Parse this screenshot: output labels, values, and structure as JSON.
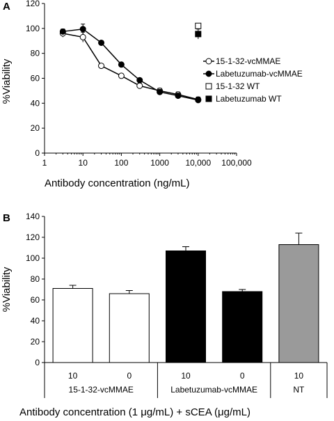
{
  "chart_data": [
    {
      "panel": "A",
      "type": "line",
      "xscale": "log",
      "xlabel": "Antibody concentration (ng/mL)",
      "ylabel": "%Viability",
      "xlim": [
        1,
        100000
      ],
      "ylim": [
        0,
        120
      ],
      "xticks": [
        "1",
        "10",
        "100",
        "1000",
        "10,000",
        "100,000"
      ],
      "yticks": [
        "0",
        "20",
        "40",
        "60",
        "80",
        "100",
        "120"
      ],
      "legend_position": "right",
      "series": [
        {
          "name": "15-1-32-vcMMAE",
          "marker": "open-circle",
          "x": [
            3,
            10,
            30,
            100,
            300,
            1000,
            3000,
            10000
          ],
          "y": [
            96,
            93,
            70,
            62,
            54,
            50,
            47,
            43
          ],
          "err": [
            3,
            4,
            0,
            0,
            2,
            2,
            2,
            2
          ]
        },
        {
          "name": "Labetuzumab-vcMMAE",
          "marker": "filled-circle",
          "x": [
            3,
            10,
            30,
            100,
            300,
            1000,
            3000,
            10000
          ],
          "y": [
            97.5,
            99.5,
            88.5,
            71,
            58.5,
            49,
            46,
            42.5
          ],
          "err": [
            2,
            4,
            0,
            0,
            0,
            2,
            2,
            2
          ]
        },
        {
          "name": "15-1-32 WT",
          "marker": "open-square",
          "x": [
            10000
          ],
          "y": [
            102
          ],
          "err": [
            0
          ]
        },
        {
          "name": "Labetuzumab WT",
          "marker": "filled-square",
          "x": [
            10000
          ],
          "y": [
            95.5
          ],
          "err": [
            4
          ]
        }
      ]
    },
    {
      "panel": "B",
      "type": "bar",
      "ylabel": "%Viability",
      "ylim": [
        0,
        140
      ],
      "yticks": [
        "0",
        "20",
        "40",
        "60",
        "80",
        "100",
        "120",
        "140"
      ],
      "xlabel": "Antibody concentration (1 μg/mL) +  sCEA  (μg/mL)",
      "categories": [
        "10",
        "0",
        "10",
        "0",
        "10"
      ],
      "values": [
        71,
        66,
        107,
        68,
        113
      ],
      "errors": [
        3,
        3,
        4,
        2,
        11
      ],
      "groups": [
        {
          "label": "15-1-32-vcMMAE",
          "bars": [
            0,
            1
          ]
        },
        {
          "label": "Labetuzumab-vcMMAE",
          "bars": [
            2,
            3
          ]
        },
        {
          "label": "NT",
          "bars": [
            4
          ]
        }
      ],
      "bar_colors": [
        "#ffffff",
        "#ffffff",
        "#000000",
        "#000000",
        "#9a9a9a"
      ]
    }
  ]
}
